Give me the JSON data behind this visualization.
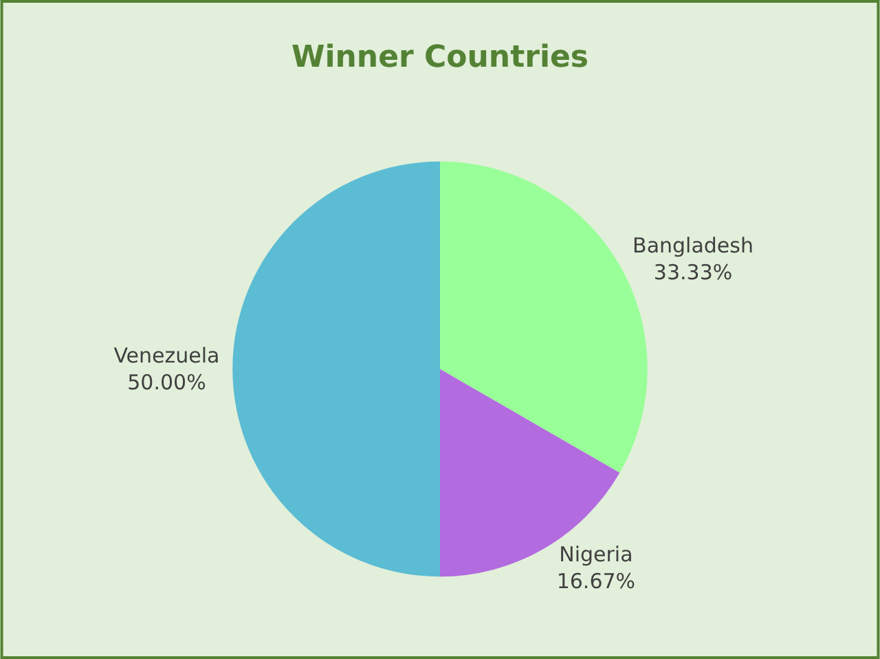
{
  "chart_data": {
    "type": "pie",
    "title": "Winner Countries",
    "categories": [
      "Bangladesh",
      "Nigeria",
      "Venezuela"
    ],
    "values": [
      33.33,
      16.67,
      50.0
    ],
    "value_labels": [
      "33.33%",
      "16.67%",
      "50.00%"
    ],
    "colors": [
      "#99ff99",
      "#b36be0",
      "#5bbcd4"
    ]
  }
}
